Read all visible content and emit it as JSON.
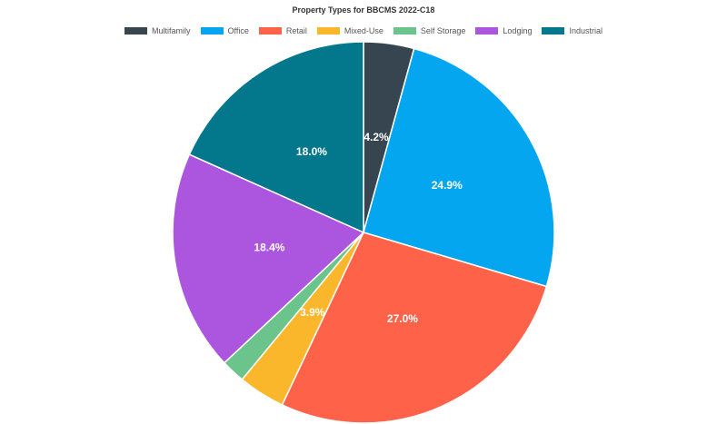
{
  "chart_data": {
    "type": "pie",
    "title": "Property Types for BBCMS 2022-C18",
    "legend_position": "top",
    "slices": [
      {
        "label": "Multifamily",
        "value": 4.2,
        "color": "#36454f",
        "show_label": true
      },
      {
        "label": "Office",
        "value": 24.9,
        "color": "#04a6f0",
        "show_label": true
      },
      {
        "label": "Retail",
        "value": 27.0,
        "color": "#fe634a",
        "show_label": true
      },
      {
        "label": "Mixed-Use",
        "value": 3.9,
        "color": "#fab72b",
        "show_label": true
      },
      {
        "label": "Self Storage",
        "value": 2.0,
        "color": "#6ac48b",
        "show_label": false
      },
      {
        "label": "Lodging",
        "value": 18.4,
        "color": "#ac55de",
        "show_label": true
      },
      {
        "label": "Industrial",
        "value": 18.0,
        "color": "#03778b",
        "show_label": true
      }
    ]
  }
}
